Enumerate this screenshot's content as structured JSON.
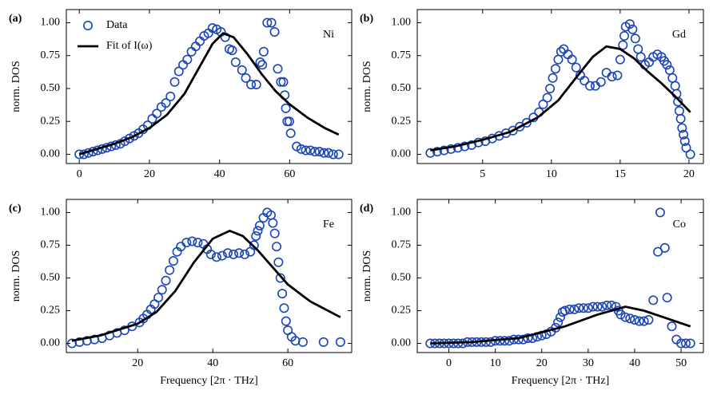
{
  "chart_data": [
    {
      "type": "scatter",
      "label": "(a)",
      "annotation": "Ni",
      "ylabel": "norm. DOS",
      "legend": "upper left",
      "xlim": [
        -3.7,
        77.7
      ],
      "xticks": [
        0,
        20,
        40,
        60
      ],
      "ylim": [
        -0.07,
        1.1
      ],
      "yticks": [
        {
          "value": 0,
          "label": "0.00"
        },
        {
          "value": 0.25,
          "label": "0.25"
        },
        {
          "value": 0.5,
          "label": "0.50"
        },
        {
          "value": 0.75,
          "label": "0.75"
        },
        {
          "value": 1,
          "label": "1.00"
        }
      ],
      "series": [
        {
          "name": "Data",
          "style": "marker",
          "color": "#1a44b8",
          "x": [
            0,
            1.3,
            2.6,
            3.9,
            5.2,
            6.5,
            7.8,
            9.1,
            10.4,
            11.7,
            13,
            14.3,
            15.6,
            16.9,
            18.2,
            19.5,
            20.8,
            22.1,
            23.4,
            24.7,
            26,
            27.2,
            28.4,
            29.6,
            30.8,
            32,
            33.2,
            34.4,
            35.6,
            36.8,
            38,
            39.2,
            40.4,
            41.6,
            42.8,
            43.6,
            44.6,
            46.4,
            47.5,
            49,
            50.5,
            51.6,
            52.2,
            52.6,
            53.6,
            54.8,
            55.7,
            56.6,
            57.5,
            58.2,
            58.6,
            58.9,
            59.3,
            59.9,
            60.3,
            62,
            63.3,
            64.6,
            65.9,
            67.2,
            68.5,
            69.8,
            71.1,
            72.4,
            74
          ],
          "values": [
            0.0,
            0.0,
            0.01,
            0.02,
            0.03,
            0.04,
            0.05,
            0.06,
            0.07,
            0.08,
            0.1,
            0.12,
            0.14,
            0.16,
            0.19,
            0.22,
            0.27,
            0.31,
            0.36,
            0.39,
            0.44,
            0.55,
            0.63,
            0.68,
            0.72,
            0.78,
            0.82,
            0.86,
            0.9,
            0.92,
            0.96,
            0.95,
            0.93,
            0.89,
            0.8,
            0.79,
            0.7,
            0.64,
            0.58,
            0.53,
            0.53,
            0.7,
            0.68,
            0.78,
            1.0,
            1.0,
            0.93,
            0.65,
            0.55,
            0.55,
            0.45,
            0.35,
            0.25,
            0.25,
            0.16,
            0.06,
            0.04,
            0.03,
            0.03,
            0.02,
            0.02,
            0.01,
            0.01,
            0.0,
            0.0
          ]
        },
        {
          "name": "Fit of I(ω)",
          "style": "line",
          "color": "#000000",
          "x": [
            0,
            5,
            10,
            15,
            20,
            25,
            30,
            34,
            38,
            41,
            44,
            48,
            52,
            56,
            60,
            65,
            70,
            74
          ],
          "values": [
            0.0,
            0.04,
            0.08,
            0.13,
            0.2,
            0.3,
            0.46,
            0.65,
            0.84,
            0.92,
            0.89,
            0.76,
            0.61,
            0.48,
            0.38,
            0.28,
            0.2,
            0.15
          ]
        }
      ]
    },
    {
      "type": "scatter",
      "label": "(b)",
      "annotation": "Gd",
      "ylabel": "norm. DOS",
      "xlim": [
        0.25,
        21.05
      ],
      "xticks": [
        5,
        10,
        15,
        20
      ],
      "ylim": [
        -0.07,
        1.1
      ],
      "yticks": [
        {
          "value": 0,
          "label": "0.00"
        },
        {
          "value": 0.25,
          "label": "0.25"
        },
        {
          "value": 0.5,
          "label": "0.50"
        },
        {
          "value": 0.75,
          "label": "0.75"
        },
        {
          "value": 1,
          "label": "1.00"
        }
      ],
      "series": [
        {
          "style": "marker",
          "color": "#1a44b8",
          "x": [
            1.2,
            1.7,
            2.2,
            2.7,
            3.2,
            3.7,
            4.2,
            4.7,
            5.2,
            5.7,
            6.2,
            6.7,
            7.2,
            7.7,
            8.2,
            8.7,
            9.1,
            9.4,
            9.7,
            9.9,
            10.1,
            10.3,
            10.5,
            10.7,
            10.9,
            11.2,
            11.5,
            11.8,
            12.1,
            12.4,
            12.8,
            13.2,
            13.6,
            14.0,
            14.4,
            14.8,
            15.0,
            15.2,
            15.3,
            15.4,
            15.7,
            15.9,
            16.1,
            16.3,
            16.5,
            16.8,
            17.1,
            17.4,
            17.7,
            18.0,
            18.2,
            18.4,
            18.6,
            18.8,
            19.0,
            19.1,
            19.2,
            19.3,
            19.4,
            19.5,
            19.6,
            19.7,
            19.8,
            20.1
          ],
          "values": [
            0.01,
            0.02,
            0.03,
            0.04,
            0.05,
            0.06,
            0.07,
            0.09,
            0.1,
            0.12,
            0.14,
            0.16,
            0.18,
            0.21,
            0.24,
            0.28,
            0.32,
            0.38,
            0.43,
            0.5,
            0.58,
            0.65,
            0.72,
            0.78,
            0.8,
            0.76,
            0.72,
            0.66,
            0.6,
            0.56,
            0.52,
            0.52,
            0.55,
            0.62,
            0.59,
            0.6,
            0.72,
            0.83,
            0.9,
            0.97,
            0.99,
            0.95,
            0.88,
            0.8,
            0.74,
            0.68,
            0.7,
            0.74,
            0.76,
            0.74,
            0.71,
            0.68,
            0.64,
            0.58,
            0.52,
            0.46,
            0.4,
            0.33,
            0.27,
            0.2,
            0.15,
            0.1,
            0.05,
            0.0
          ]
        },
        {
          "style": "line",
          "color": "#000000",
          "x": [
            1.2,
            3,
            5,
            7,
            9,
            10.5,
            12,
            13,
            14,
            15,
            16,
            17,
            18,
            19,
            20.1
          ],
          "values": [
            0.03,
            0.06,
            0.11,
            0.17,
            0.28,
            0.41,
            0.61,
            0.74,
            0.82,
            0.8,
            0.73,
            0.63,
            0.54,
            0.44,
            0.32
          ]
        }
      ]
    },
    {
      "type": "scatter",
      "label": "(c)",
      "annotation": "Fe",
      "ylabel": "norm. DOS",
      "xlabel": "Frequency [2π · THz]",
      "xlim": [
        1,
        77
      ],
      "xticks": [
        20,
        40,
        60
      ],
      "ylim": [
        -0.07,
        1.1
      ],
      "yticks": [
        {
          "value": 0,
          "label": "0.00"
        },
        {
          "value": 0.25,
          "label": "0.25"
        },
        {
          "value": 0.5,
          "label": "0.50"
        },
        {
          "value": 0.75,
          "label": "0.75"
        },
        {
          "value": 1,
          "label": "1.00"
        }
      ],
      "series": [
        {
          "style": "marker",
          "color": "#1a44b8",
          "x": [
            2.5,
            4.5,
            6.5,
            8.5,
            10.5,
            12.5,
            14.5,
            16.5,
            18.5,
            20.5,
            21.5,
            22.5,
            23.5,
            24.5,
            25.5,
            26.5,
            27.5,
            28.5,
            29.5,
            30.5,
            31.5,
            33,
            34.5,
            36,
            37.5,
            38.5,
            39.5,
            41,
            42.5,
            44,
            45.5,
            47,
            48.5,
            50,
            51,
            51.5,
            52,
            52.5,
            53.5,
            54.5,
            55.5,
            56,
            56.5,
            57,
            57.5,
            58,
            58.5,
            59,
            59.5,
            60,
            61,
            62,
            64,
            69.5,
            74
          ],
          "values": [
            0.0,
            0.01,
            0.02,
            0.03,
            0.04,
            0.06,
            0.08,
            0.1,
            0.13,
            0.16,
            0.19,
            0.22,
            0.26,
            0.3,
            0.35,
            0.41,
            0.48,
            0.56,
            0.63,
            0.7,
            0.74,
            0.77,
            0.78,
            0.77,
            0.76,
            0.72,
            0.68,
            0.66,
            0.67,
            0.69,
            0.68,
            0.69,
            0.68,
            0.7,
            0.75,
            0.82,
            0.86,
            0.9,
            0.96,
            1.0,
            0.98,
            0.92,
            0.84,
            0.74,
            0.62,
            0.5,
            0.38,
            0.27,
            0.17,
            0.1,
            0.05,
            0.02,
            0.01,
            0.01,
            0.01
          ]
        },
        {
          "style": "line",
          "color": "#000000",
          "x": [
            2.5,
            10,
            20,
            25,
            30,
            35,
            40,
            44.5,
            48,
            52,
            56,
            60,
            66,
            74
          ],
          "values": [
            0.02,
            0.06,
            0.15,
            0.24,
            0.4,
            0.62,
            0.8,
            0.86,
            0.82,
            0.71,
            0.58,
            0.45,
            0.32,
            0.2
          ]
        }
      ]
    },
    {
      "type": "scatter",
      "label": "(d)",
      "annotation": "Co",
      "ylabel": "norm. DOS",
      "xlabel": "Frequency [2π · THz]",
      "xlim": [
        -6.8,
        54.8
      ],
      "xticks": [
        0,
        10,
        20,
        30,
        40,
        50
      ],
      "ylim": [
        -0.07,
        1.1
      ],
      "yticks": [
        {
          "value": 0,
          "label": "0.00"
        },
        {
          "value": 0.25,
          "label": "0.25"
        },
        {
          "value": 0.5,
          "label": "0.50"
        },
        {
          "value": 0.75,
          "label": "0.75"
        },
        {
          "value": 1,
          "label": "1.00"
        }
      ],
      "series": [
        {
          "style": "marker",
          "color": "#1a44b8",
          "x": [
            -4,
            -3,
            -2,
            -1,
            0,
            1,
            2,
            3,
            4,
            5,
            6,
            7,
            8,
            9,
            10,
            11,
            12,
            13,
            14,
            15,
            16,
            17,
            18,
            19,
            20,
            21,
            22,
            23,
            23.5,
            24,
            24.5,
            25,
            26,
            27,
            28,
            29,
            30,
            31,
            32,
            33,
            34,
            35,
            36,
            36.5,
            37,
            38,
            39,
            40,
            41,
            42,
            43,
            44,
            45,
            45.5,
            46.5,
            47,
            48,
            49,
            50,
            51,
            52
          ],
          "values": [
            0.0,
            0.0,
            0.0,
            0.0,
            0.0,
            0.0,
            0.0,
            0.0,
            0.01,
            0.01,
            0.01,
            0.01,
            0.01,
            0.01,
            0.02,
            0.02,
            0.02,
            0.02,
            0.03,
            0.03,
            0.03,
            0.04,
            0.04,
            0.05,
            0.06,
            0.07,
            0.09,
            0.12,
            0.16,
            0.2,
            0.24,
            0.25,
            0.26,
            0.26,
            0.27,
            0.27,
            0.27,
            0.28,
            0.28,
            0.28,
            0.29,
            0.29,
            0.28,
            0.25,
            0.22,
            0.2,
            0.19,
            0.18,
            0.17,
            0.17,
            0.18,
            0.33,
            0.7,
            1.0,
            0.73,
            0.35,
            0.13,
            0.03,
            0.0,
            0.0,
            0.0
          ]
        },
        {
          "style": "line",
          "color": "#000000",
          "x": [
            -4,
            5,
            15,
            25,
            32,
            38,
            42,
            47,
            52
          ],
          "values": [
            0.0,
            0.01,
            0.04,
            0.13,
            0.22,
            0.28,
            0.25,
            0.19,
            0.13
          ]
        }
      ]
    }
  ]
}
